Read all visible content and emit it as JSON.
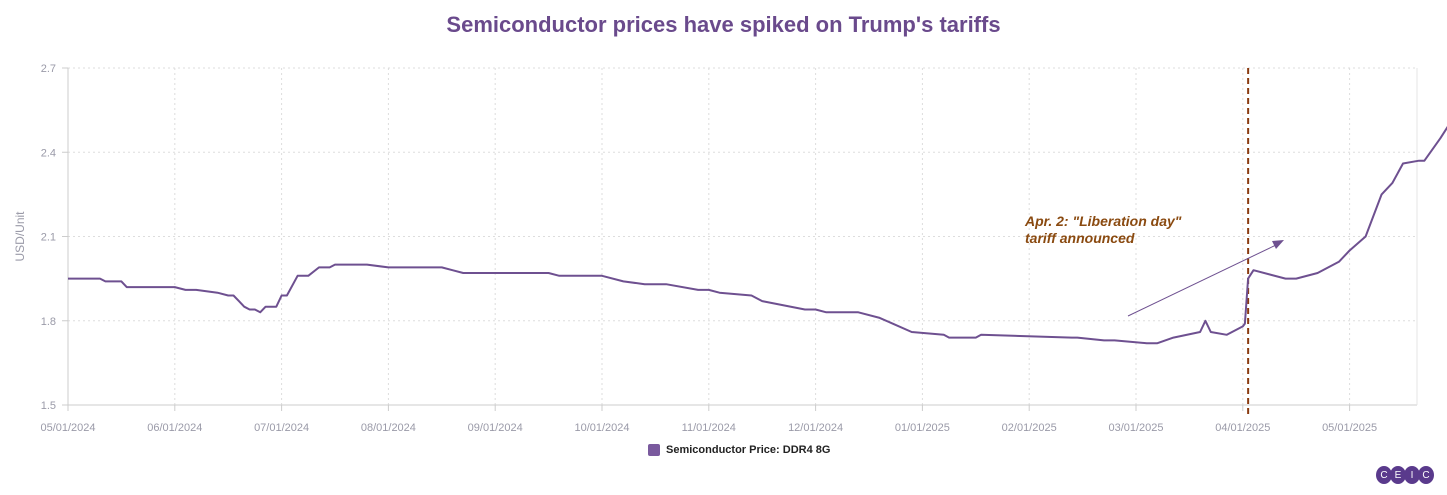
{
  "chart_data": {
    "type": "line",
    "title": "Semiconductor prices have spiked on Trump's tariffs",
    "ylabel": "USD/Unit",
    "xlabel": "",
    "ylim": [
      1.5,
      2.7
    ],
    "yticks": [
      "1.5",
      "1.8",
      "2.1",
      "2.4",
      "2.7"
    ],
    "xticks": [
      "05/01/2024",
      "06/01/2024",
      "07/01/2024",
      "08/01/2024",
      "09/01/2024",
      "10/01/2024",
      "11/01/2024",
      "12/01/2024",
      "01/01/2025",
      "02/01/2025",
      "03/01/2025",
      "04/01/2025",
      "05/01/2025"
    ],
    "grid": true,
    "legend_position": "bottom",
    "series": [
      {
        "name": "Semiconductor Price: DDR4 8G",
        "color": "#6e5090",
        "x": [
          0,
          0.3,
          0.35,
          0.5,
          0.55,
          1.0,
          1.1,
          1.2,
          1.4,
          1.5,
          1.55,
          1.6,
          1.65,
          1.7,
          1.75,
          1.8,
          1.85,
          1.95,
          2.0,
          2.05,
          2.15,
          2.25,
          2.35,
          2.45,
          2.5,
          2.8,
          3.0,
          3.5,
          3.6,
          3.7,
          4.5,
          4.6,
          5.0,
          5.2,
          5.4,
          5.6,
          5.9,
          6.0,
          6.1,
          6.4,
          6.5,
          6.9,
          7.0,
          7.1,
          7.2,
          7.4,
          7.6,
          7.9,
          8.2,
          8.25,
          8.5,
          8.55,
          9.4,
          9.45,
          9.7,
          9.8,
          10.1,
          10.2,
          10.35,
          10.6,
          10.65,
          10.7,
          10.85,
          11.0,
          11.02,
          11.05,
          11.1,
          11.4,
          11.5,
          11.7,
          11.9,
          12.0,
          12.15,
          12.3,
          12.4,
          12.5,
          12.65,
          12.7,
          12.85,
          12.95
        ],
        "values": [
          1.95,
          1.95,
          1.94,
          1.94,
          1.92,
          1.92,
          1.91,
          1.91,
          1.9,
          1.89,
          1.89,
          1.87,
          1.85,
          1.84,
          1.84,
          1.83,
          1.85,
          1.85,
          1.89,
          1.89,
          1.96,
          1.96,
          1.99,
          1.99,
          2.0,
          2.0,
          1.99,
          1.99,
          1.98,
          1.97,
          1.97,
          1.96,
          1.96,
          1.94,
          1.93,
          1.93,
          1.91,
          1.91,
          1.9,
          1.89,
          1.87,
          1.84,
          1.84,
          1.83,
          1.83,
          1.83,
          1.81,
          1.76,
          1.75,
          1.74,
          1.74,
          1.75,
          1.74,
          1.74,
          1.73,
          1.73,
          1.72,
          1.72,
          1.74,
          1.76,
          1.8,
          1.76,
          1.75,
          1.78,
          1.79,
          1.95,
          1.98,
          1.95,
          1.95,
          1.97,
          2.01,
          2.05,
          2.1,
          2.25,
          2.29,
          2.36,
          2.37,
          2.37,
          2.45,
          2.51
        ]
      }
    ],
    "annotations": [
      {
        "text_line1": "Apr. 2: \"Liberation day\"",
        "text_line2": "tariff announced",
        "x_month": 11.05
      }
    ]
  },
  "legend": {
    "label": "Semiconductor Price: DDR4 8G",
    "color": "#7a5a9e"
  },
  "annotation": {
    "line1": "Apr. 2: \"Liberation day\"",
    "line2": "tariff announced"
  },
  "logo": [
    "C",
    "E",
    "I",
    "C"
  ]
}
